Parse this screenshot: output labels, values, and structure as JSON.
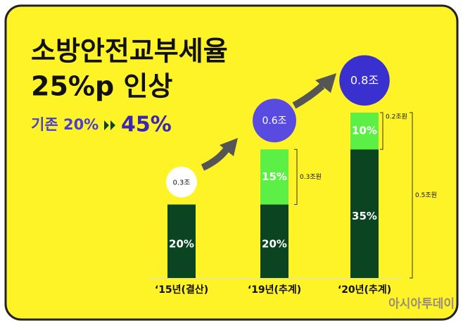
{
  "chart_data": {
    "type": "bar",
    "title": "소방안전교부세율",
    "subtitle": "25%p 인상",
    "note_from": "기존 20%",
    "note_to": "45%",
    "categories": [
      "‘15년(결산)",
      "‘19년(추계)",
      "‘20년(추계)"
    ],
    "series": [
      {
        "color": "#0b4420",
        "values": [
          20,
          20,
          35
        ],
        "value_labels": [
          "20%",
          "20%",
          "35%"
        ]
      },
      {
        "color": "#5cf046",
        "values": [
          null,
          15,
          10
        ],
        "value_labels": [
          null,
          "15%",
          "10%"
        ]
      }
    ],
    "ylim": [
      0,
      45
    ],
    "totals": [
      0.3,
      0.6,
      0.8
    ],
    "total_labels": [
      "0.3조",
      "0.6조",
      "0.8조"
    ],
    "total_colors": [
      "#ffffff",
      "#5a4be0",
      "#3a2fcf"
    ],
    "brackets": [
      "0.3조원",
      "0.2조원",
      "0.5조원"
    ],
    "source": "아시아투데이"
  }
}
